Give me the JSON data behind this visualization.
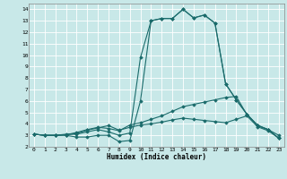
{
  "xlabel": "Humidex (Indice chaleur)",
  "xlim": [
    -0.5,
    23.5
  ],
  "ylim": [
    2.0,
    14.5
  ],
  "yticks": [
    2,
    3,
    4,
    5,
    6,
    7,
    8,
    9,
    10,
    11,
    12,
    13,
    14
  ],
  "xticks": [
    0,
    1,
    2,
    3,
    4,
    5,
    6,
    7,
    8,
    9,
    10,
    11,
    12,
    13,
    14,
    15,
    16,
    17,
    18,
    19,
    20,
    21,
    22,
    23
  ],
  "bg_color": "#c8e8e8",
  "grid_color": "#ffffff",
  "line_color": "#1a6b6b",
  "lines": [
    [
      3.1,
      3.0,
      3.0,
      3.0,
      2.85,
      2.85,
      3.0,
      3.0,
      2.45,
      2.55,
      6.0,
      13.0,
      13.2,
      13.2,
      14.0,
      13.25,
      13.5,
      12.8,
      7.5,
      6.1,
      4.85,
      3.85,
      3.5,
      2.75
    ],
    [
      3.1,
      3.0,
      3.0,
      3.1,
      3.1,
      3.3,
      3.5,
      3.3,
      3.0,
      3.2,
      9.8,
      13.0,
      13.2,
      13.2,
      14.0,
      13.25,
      13.5,
      12.8,
      7.5,
      6.1,
      4.85,
      3.85,
      3.5,
      2.75
    ],
    [
      3.1,
      3.0,
      3.0,
      3.05,
      3.25,
      3.5,
      3.7,
      3.6,
      3.4,
      3.9,
      4.1,
      4.4,
      4.7,
      5.1,
      5.5,
      5.7,
      5.9,
      6.1,
      6.3,
      6.4,
      4.8,
      3.9,
      3.5,
      3.0
    ],
    [
      3.1,
      3.0,
      3.0,
      3.05,
      3.15,
      3.45,
      3.65,
      3.85,
      3.45,
      3.7,
      3.9,
      4.0,
      4.15,
      4.35,
      4.5,
      4.4,
      4.3,
      4.2,
      4.1,
      4.4,
      4.7,
      3.75,
      3.4,
      2.75
    ]
  ]
}
